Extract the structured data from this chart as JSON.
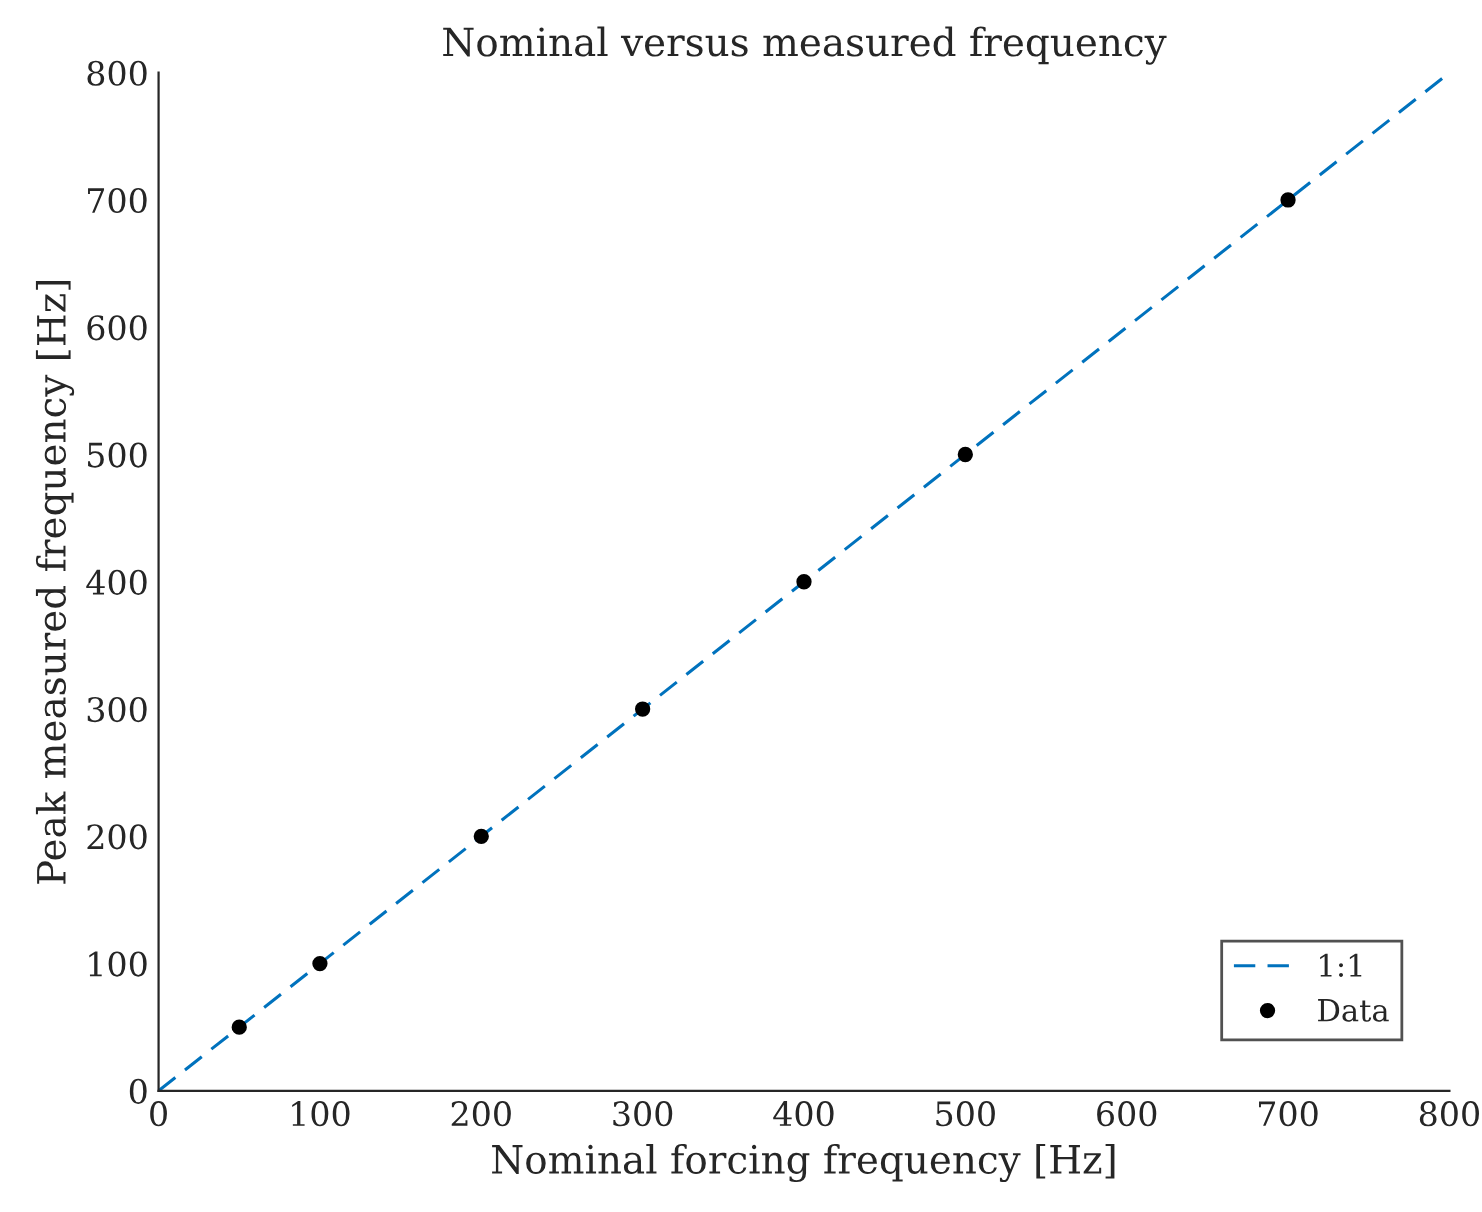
{
  "chart_data": {
    "type": "scatter",
    "title": "Nominal versus measured frequency",
    "xlabel": "Nominal forcing frequency [Hz]",
    "ylabel": "Peak measured frequency [Hz]",
    "series": [
      {
        "name": "1:1",
        "type": "line",
        "color": "#0072bd",
        "line_style": "dashed",
        "marker": "none",
        "x": [
          0,
          800
        ],
        "values": [
          0,
          800
        ]
      },
      {
        "name": "Data",
        "color": "#000000",
        "marker": "circle",
        "x": [
          50,
          100,
          200,
          300,
          400,
          500,
          700
        ],
        "values": [
          50,
          100,
          200,
          300,
          400,
          500,
          700
        ]
      }
    ],
    "xlim": [
      0,
      800
    ],
    "ylim": [
      0,
      800
    ],
    "xticks": [
      0,
      100,
      200,
      300,
      400,
      500,
      600,
      700,
      800
    ],
    "yticks": [
      0,
      100,
      200,
      300,
      400,
      500,
      600,
      700,
      800
    ],
    "grid": false,
    "legend": "bottom right"
  }
}
